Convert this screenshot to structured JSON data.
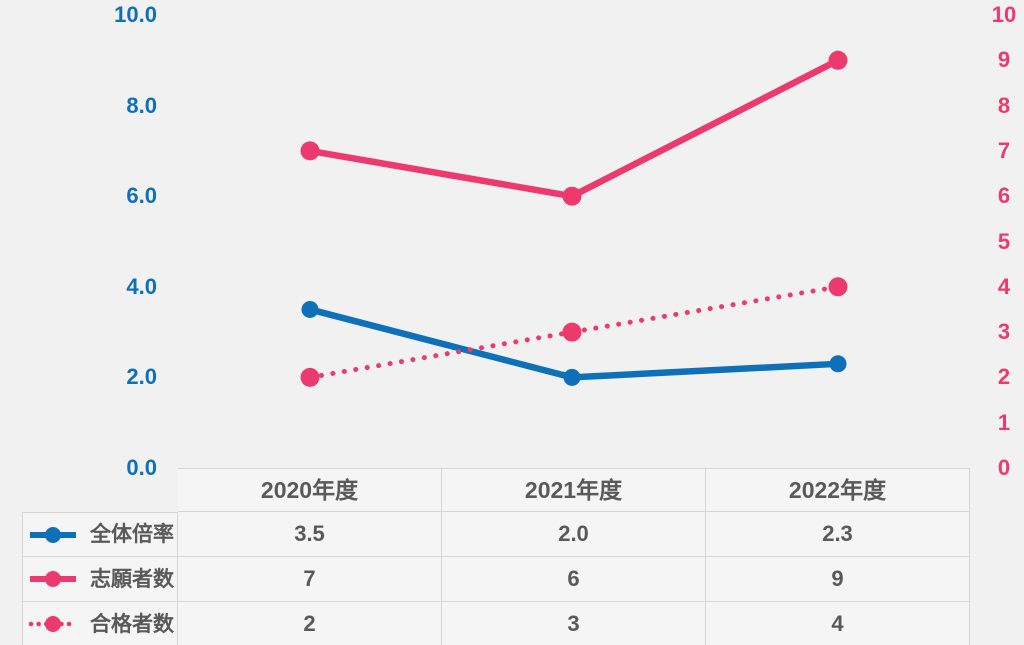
{
  "chart_data": {
    "type": "line",
    "title": "",
    "categories": [
      "2020年度",
      "2021年度",
      "2022年度"
    ],
    "series": [
      {
        "name": "全体倍率",
        "values": [
          3.5,
          2.0,
          2.3
        ],
        "color": "#0f70ba",
        "line_style": "solid",
        "axis": "left"
      },
      {
        "name": "志願者数",
        "values": [
          7,
          6,
          9
        ],
        "color": "#ec3a6e",
        "line_style": "solid",
        "axis": "right"
      },
      {
        "name": "合格者数",
        "values": [
          2,
          3,
          4
        ],
        "color": "#ec3a6e",
        "line_style": "dotted",
        "axis": "right"
      }
    ],
    "left_axis": {
      "min": 0,
      "max": 10,
      "tick_step": 2,
      "tick_labels": [
        "0.0",
        "2.0",
        "4.0",
        "6.0",
        "8.0",
        "10.0"
      ],
      "color": "#0f70ba"
    },
    "right_axis": {
      "min": 0,
      "max": 10,
      "tick_step": 1,
      "tick_labels": [
        "0",
        "1",
        "2",
        "3",
        "4",
        "5",
        "6",
        "7",
        "8",
        "9",
        "10"
      ],
      "color": "#ec3a6e"
    },
    "grid": false,
    "legend_position": "table-rows-left"
  },
  "table": {
    "column_headers": [
      "2020年度",
      "2021年度",
      "2022年度"
    ],
    "rows": [
      {
        "legend_icon": "blue-solid-line-marker-icon",
        "label": "全体倍率",
        "values": [
          "3.5",
          "2.0",
          "2.3"
        ]
      },
      {
        "legend_icon": "pink-solid-line-marker-icon",
        "label": "志願者数",
        "values": [
          "7",
          "6",
          "9"
        ]
      },
      {
        "legend_icon": "pink-dotted-line-marker-icon",
        "label": "合格者数",
        "values": [
          "2",
          "3",
          "4"
        ]
      }
    ]
  },
  "colors": {
    "blue": "#0f70ba",
    "pink": "#ec3a6e",
    "table_text": "#595959",
    "background": "#f1f1f1",
    "cell_background": "#f5f5f5",
    "cell_border": "#d6d6d6"
  }
}
